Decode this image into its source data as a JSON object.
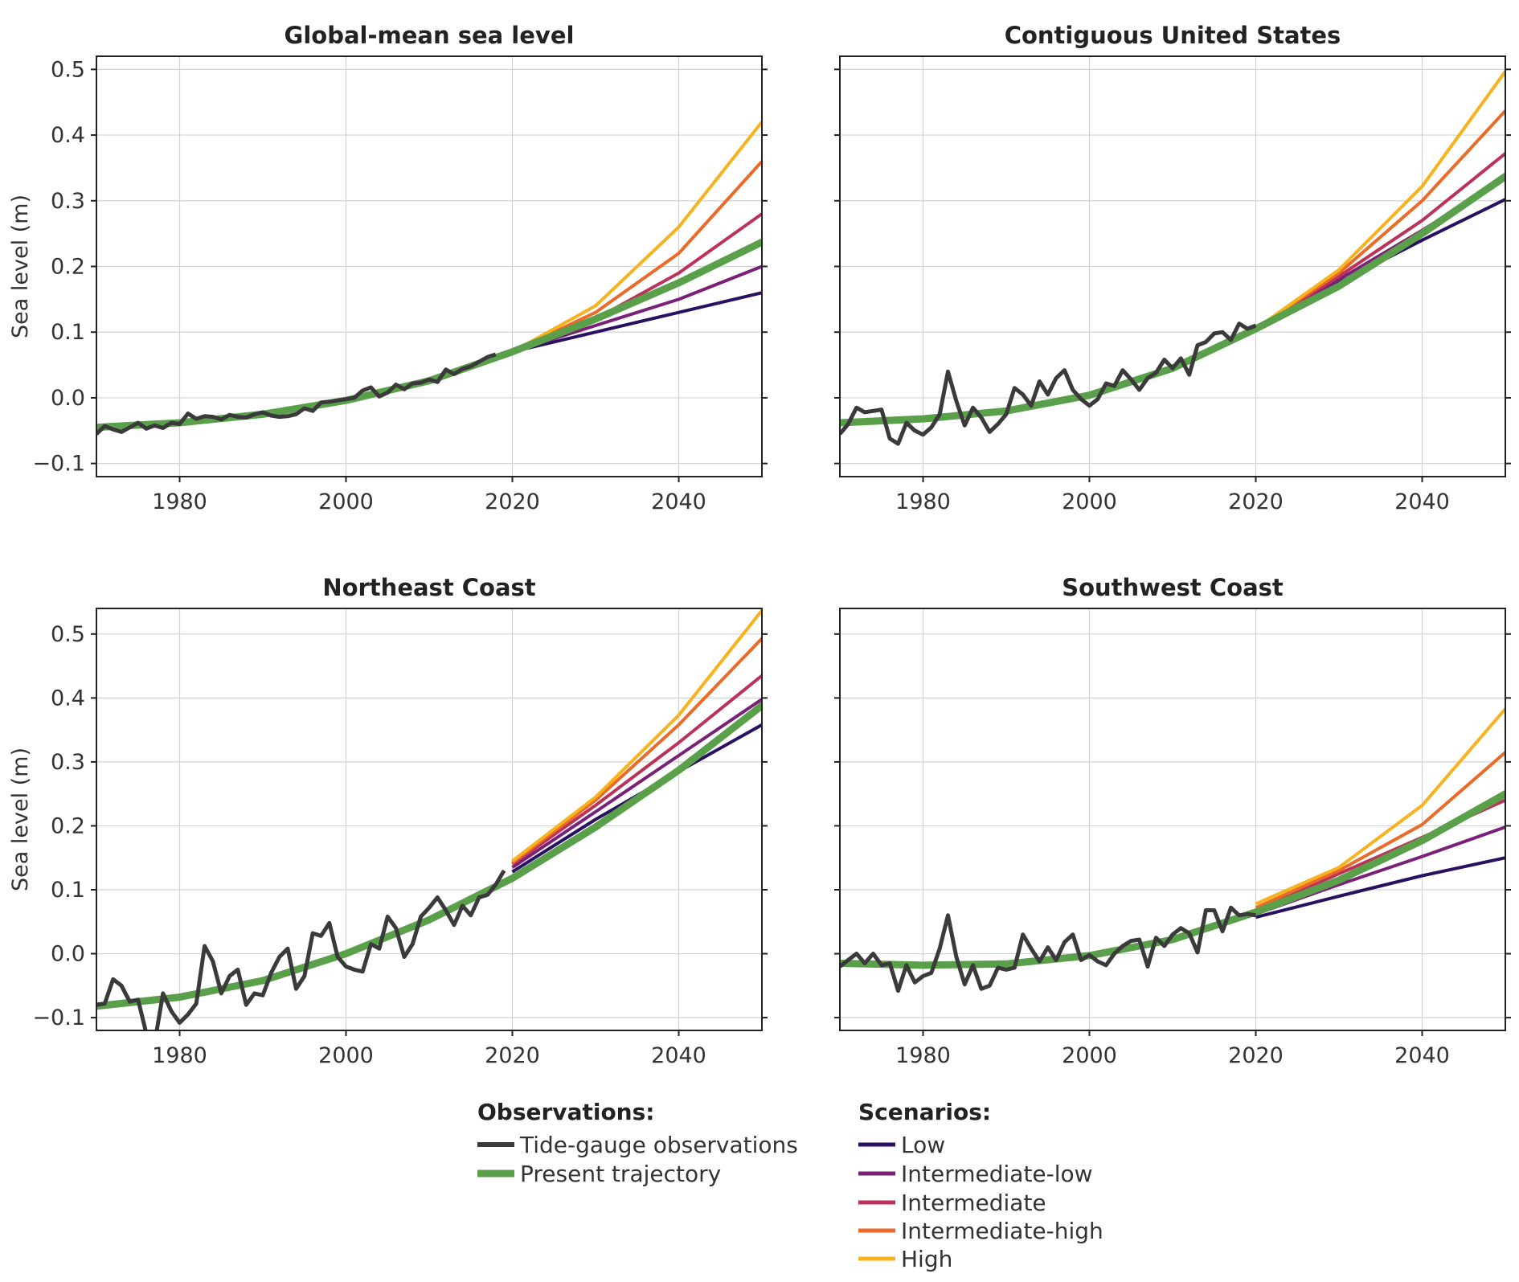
{
  "figure": {
    "legend": {
      "observations_title": "Observations:",
      "scenarios_title": "Scenarios:",
      "items_observations": [
        {
          "key": "obs",
          "label": "Tide-gauge observations",
          "color": "#3a3a3a"
        },
        {
          "key": "traj",
          "label": "Present trajectory",
          "color": "#5aa04a"
        }
      ],
      "items_scenarios": [
        {
          "key": "low",
          "label": "Low",
          "color": "#2a1060"
        },
        {
          "key": "intlow",
          "label": "Intermediate-low",
          "color": "#7a2078"
        },
        {
          "key": "int",
          "label": "Intermediate",
          "color": "#bb3358"
        },
        {
          "key": "inthigh",
          "label": "Intermediate-high",
          "color": "#ec6a28"
        },
        {
          "key": "high",
          "label": "High",
          "color": "#f7b21e"
        }
      ]
    }
  },
  "chart_data": [
    {
      "type": "line",
      "title": "Global-mean sea level",
      "xlabel": "",
      "ylabel": "Sea level (m)",
      "xlim": [
        1970,
        2050
      ],
      "ylim": [
        -0.12,
        0.52
      ],
      "xticks": [
        1980,
        2000,
        2020,
        2040
      ],
      "yticks": [
        -0.1,
        0.0,
        0.1,
        0.2,
        0.3,
        0.4,
        0.5
      ],
      "ytick_labels": [
        "−0.1",
        "0.0",
        "0.1",
        "0.2",
        "0.3",
        "0.4",
        "0.5"
      ],
      "grid": true,
      "observations": {
        "x": [
          1970,
          1971,
          1972,
          1973,
          1974,
          1975,
          1976,
          1977,
          1978,
          1979,
          1980,
          1981,
          1982,
          1983,
          1984,
          1985,
          1986,
          1987,
          1988,
          1989,
          1990,
          1991,
          1992,
          1993,
          1994,
          1995,
          1996,
          1997,
          1998,
          1999,
          2000,
          2001,
          2002,
          2003,
          2004,
          2005,
          2006,
          2007,
          2008,
          2009,
          2010,
          2011,
          2012,
          2013,
          2014,
          2015,
          2016,
          2017,
          2018
        ],
        "y": [
          -0.055,
          -0.043,
          -0.048,
          -0.052,
          -0.045,
          -0.038,
          -0.047,
          -0.042,
          -0.046,
          -0.038,
          -0.04,
          -0.024,
          -0.032,
          -0.028,
          -0.029,
          -0.033,
          -0.026,
          -0.029,
          -0.03,
          -0.025,
          -0.022,
          -0.027,
          -0.029,
          -0.028,
          -0.025,
          -0.016,
          -0.02,
          -0.007,
          -0.006,
          -0.004,
          -0.002,
          0.0,
          0.011,
          0.016,
          0.002,
          0.008,
          0.02,
          0.013,
          0.022,
          0.023,
          0.028,
          0.024,
          0.043,
          0.036,
          0.044,
          0.048,
          0.055,
          0.062,
          0.066
        ]
      },
      "trajectory": {
        "x": [
          1970,
          1980,
          1990,
          2000,
          2010,
          2020,
          2030,
          2040,
          2050
        ],
        "y": [
          -0.045,
          -0.038,
          -0.025,
          -0.004,
          0.026,
          0.07,
          0.12,
          0.175,
          0.237
        ]
      },
      "scenarios": {
        "x": [
          2020,
          2030,
          2040,
          2050
        ],
        "low": [
          0.07,
          0.1,
          0.13,
          0.16
        ],
        "intlow": [
          0.07,
          0.11,
          0.15,
          0.2
        ],
        "int": [
          0.07,
          0.12,
          0.19,
          0.28
        ],
        "inthigh": [
          0.07,
          0.13,
          0.22,
          0.36
        ],
        "high": [
          0.07,
          0.14,
          0.26,
          0.42
        ]
      }
    },
    {
      "type": "line",
      "title": "Contiguous United States",
      "xlabel": "",
      "ylabel": "",
      "xlim": [
        1970,
        2050
      ],
      "ylim": [
        -0.12,
        0.52
      ],
      "xticks": [
        1980,
        2000,
        2020,
        2040
      ],
      "yticks": [
        -0.1,
        0.0,
        0.1,
        0.2,
        0.3,
        0.4,
        0.5
      ],
      "grid": true,
      "observations": {
        "x": [
          1970,
          1971,
          1972,
          1973,
          1974,
          1975,
          1976,
          1977,
          1978,
          1979,
          1980,
          1981,
          1982,
          1983,
          1984,
          1985,
          1986,
          1987,
          1988,
          1989,
          1990,
          1991,
          1992,
          1993,
          1994,
          1995,
          1996,
          1997,
          1998,
          1999,
          2000,
          2001,
          2002,
          2003,
          2004,
          2005,
          2006,
          2007,
          2008,
          2009,
          2010,
          2011,
          2012,
          2013,
          2014,
          2015,
          2016,
          2017,
          2018,
          2019,
          2020
        ],
        "y": [
          -0.055,
          -0.04,
          -0.015,
          -0.022,
          -0.02,
          -0.018,
          -0.062,
          -0.07,
          -0.038,
          -0.05,
          -0.056,
          -0.045,
          -0.025,
          0.04,
          -0.005,
          -0.042,
          -0.015,
          -0.03,
          -0.052,
          -0.04,
          -0.025,
          0.015,
          0.005,
          -0.012,
          0.025,
          0.005,
          0.03,
          0.042,
          0.012,
          -0.002,
          -0.012,
          -0.002,
          0.022,
          0.018,
          0.042,
          0.028,
          0.012,
          0.03,
          0.038,
          0.058,
          0.045,
          0.06,
          0.035,
          0.08,
          0.085,
          0.098,
          0.1,
          0.088,
          0.113,
          0.105,
          0.11
        ]
      },
      "trajectory": {
        "x": [
          1970,
          1980,
          1990,
          2000,
          2010,
          2020,
          2030,
          2040,
          2050
        ],
        "y": [
          -0.038,
          -0.032,
          -0.02,
          0.004,
          0.045,
          0.105,
          0.17,
          0.25,
          0.337
        ]
      },
      "scenarios": {
        "x": [
          2020,
          2030,
          2040,
          2050
        ],
        "low": [
          0.105,
          0.175,
          0.24,
          0.302
        ],
        "intlow": [
          0.105,
          0.18,
          0.255,
          0.335
        ],
        "int": [
          0.105,
          0.185,
          0.27,
          0.372
        ],
        "inthigh": [
          0.105,
          0.19,
          0.3,
          0.437
        ],
        "high": [
          0.105,
          0.195,
          0.322,
          0.497
        ]
      }
    },
    {
      "type": "line",
      "title": "Northeast Coast",
      "xlabel": "",
      "ylabel": "Sea level (m)",
      "xlim": [
        1970,
        2050
      ],
      "ylim": [
        -0.12,
        0.54
      ],
      "xticks": [
        1980,
        2000,
        2020,
        2040
      ],
      "yticks": [
        -0.1,
        0.0,
        0.1,
        0.2,
        0.3,
        0.4,
        0.5
      ],
      "ytick_labels": [
        "−0.1",
        "0.0",
        "0.1",
        "0.2",
        "0.3",
        "0.4",
        "0.5"
      ],
      "grid": true,
      "observations": {
        "x": [
          1970,
          1971,
          1972,
          1973,
          1974,
          1975,
          1976,
          1977,
          1978,
          1979,
          1980,
          1981,
          1982,
          1983,
          1984,
          1985,
          1986,
          1987,
          1988,
          1989,
          1990,
          1991,
          1992,
          1993,
          1994,
          1995,
          1996,
          1997,
          1998,
          1999,
          2000,
          2001,
          2002,
          2003,
          2004,
          2005,
          2006,
          2007,
          2008,
          2009,
          2010,
          2011,
          2012,
          2013,
          2014,
          2015,
          2016,
          2017,
          2018,
          2019
        ],
        "y": [
          -0.08,
          -0.078,
          -0.04,
          -0.05,
          -0.075,
          -0.072,
          -0.125,
          -0.14,
          -0.062,
          -0.09,
          -0.108,
          -0.095,
          -0.078,
          0.012,
          -0.012,
          -0.062,
          -0.035,
          -0.025,
          -0.08,
          -0.062,
          -0.065,
          -0.03,
          -0.005,
          0.008,
          -0.055,
          -0.035,
          0.032,
          0.028,
          0.048,
          -0.005,
          -0.02,
          -0.025,
          -0.028,
          0.015,
          0.008,
          0.058,
          0.04,
          -0.005,
          0.015,
          0.058,
          0.072,
          0.088,
          0.068,
          0.045,
          0.075,
          0.06,
          0.088,
          0.092,
          0.108,
          0.13
        ]
      },
      "trajectory": {
        "x": [
          1970,
          1980,
          1990,
          2000,
          2010,
          2020,
          2030,
          2040,
          2050
        ],
        "y": [
          -0.082,
          -0.068,
          -0.042,
          0.0,
          0.053,
          0.118,
          0.198,
          0.287,
          0.388
        ]
      },
      "scenarios": {
        "x": [
          2020,
          2030,
          2040,
          2050
        ],
        "low": [
          0.128,
          0.21,
          0.285,
          0.358
        ],
        "intlow": [
          0.135,
          0.222,
          0.31,
          0.398
        ],
        "int": [
          0.14,
          0.232,
          0.33,
          0.435
        ],
        "inthigh": [
          0.142,
          0.24,
          0.358,
          0.493
        ],
        "high": [
          0.145,
          0.245,
          0.373,
          0.537
        ]
      }
    },
    {
      "type": "line",
      "title": "Southwest Coast",
      "xlabel": "",
      "ylabel": "",
      "xlim": [
        1970,
        2050
      ],
      "ylim": [
        -0.12,
        0.54
      ],
      "xticks": [
        1980,
        2000,
        2020,
        2040
      ],
      "yticks": [
        -0.1,
        0.0,
        0.1,
        0.2,
        0.3,
        0.4,
        0.5
      ],
      "grid": true,
      "observations": {
        "x": [
          1970,
          1971,
          1972,
          1973,
          1974,
          1975,
          1976,
          1977,
          1978,
          1979,
          1980,
          1981,
          1982,
          1983,
          1984,
          1985,
          1986,
          1987,
          1988,
          1989,
          1990,
          1991,
          1992,
          1993,
          1994,
          1995,
          1996,
          1997,
          1998,
          1999,
          2000,
          2001,
          2002,
          2003,
          2004,
          2005,
          2006,
          2007,
          2008,
          2009,
          2010,
          2011,
          2012,
          2013,
          2014,
          2015,
          2016,
          2017,
          2018,
          2019,
          2020
        ],
        "y": [
          -0.02,
          -0.01,
          0.0,
          -0.015,
          0.0,
          -0.018,
          -0.015,
          -0.058,
          -0.018,
          -0.045,
          -0.035,
          -0.03,
          0.008,
          0.06,
          -0.005,
          -0.048,
          -0.018,
          -0.055,
          -0.05,
          -0.022,
          -0.025,
          -0.022,
          0.03,
          0.008,
          -0.012,
          0.01,
          -0.01,
          0.018,
          0.03,
          -0.01,
          -0.002,
          -0.012,
          -0.018,
          0.0,
          0.012,
          0.02,
          0.022,
          -0.02,
          0.025,
          0.012,
          0.03,
          0.04,
          0.032,
          0.002,
          0.068,
          0.068,
          0.035,
          0.072,
          0.06,
          0.062,
          0.06
        ]
      },
      "trajectory": {
        "x": [
          1970,
          1980,
          1990,
          2000,
          2010,
          2020,
          2030,
          2040,
          2050
        ],
        "y": [
          -0.015,
          -0.018,
          -0.016,
          -0.003,
          0.022,
          0.065,
          0.115,
          0.177,
          0.25
        ]
      },
      "scenarios": {
        "x": [
          2020,
          2030,
          2040,
          2050
        ],
        "low": [
          0.057,
          0.09,
          0.122,
          0.15
        ],
        "intlow": [
          0.062,
          0.108,
          0.152,
          0.198
        ],
        "int": [
          0.068,
          0.125,
          0.182,
          0.24
        ],
        "inthigh": [
          0.072,
          0.13,
          0.202,
          0.315
        ],
        "high": [
          0.078,
          0.135,
          0.232,
          0.383
        ]
      }
    }
  ]
}
